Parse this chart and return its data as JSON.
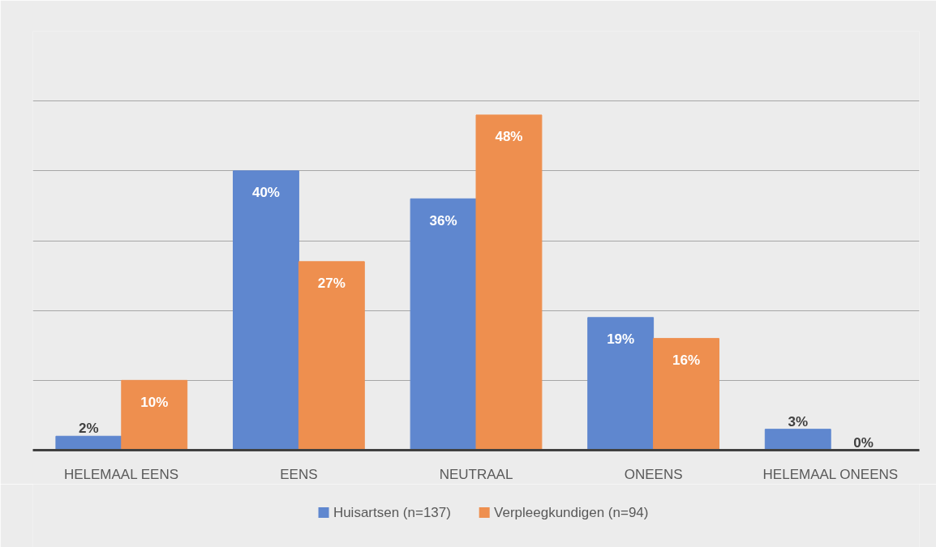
{
  "chart_data": {
    "type": "bar",
    "categories": [
      "HELEMAAL EENS",
      "EENS",
      "NEUTRAAL",
      "ONEENS",
      "HELEMAAL ONEENS"
    ],
    "series": [
      {
        "name": "Huisartsen (n=137)",
        "color": "#5f87cf",
        "values": [
          2,
          40,
          36,
          19,
          3
        ],
        "value_labels": [
          "2%",
          "40%",
          "36%",
          "19%",
          "3%"
        ]
      },
      {
        "name": "Verpleegkundigen (n=94)",
        "color": "#ee8f4f",
        "values": [
          10,
          27,
          48,
          16,
          0
        ],
        "value_labels": [
          "10%",
          "27%",
          "48%",
          "16%",
          "0%"
        ]
      }
    ],
    "ylim": [
      0,
      60
    ],
    "yticks": [
      {
        "value": 0,
        "label": null
      },
      {
        "value": 10,
        "label": null
      },
      {
        "value": 20,
        "label": null
      },
      {
        "value": 30,
        "label": null
      },
      {
        "value": 40,
        "label": null
      },
      {
        "value": 50,
        "label": null
      },
      {
        "value": 60,
        "label": null
      }
    ],
    "grid": "y",
    "legend": "bottom",
    "tick_labels": "x"
  }
}
